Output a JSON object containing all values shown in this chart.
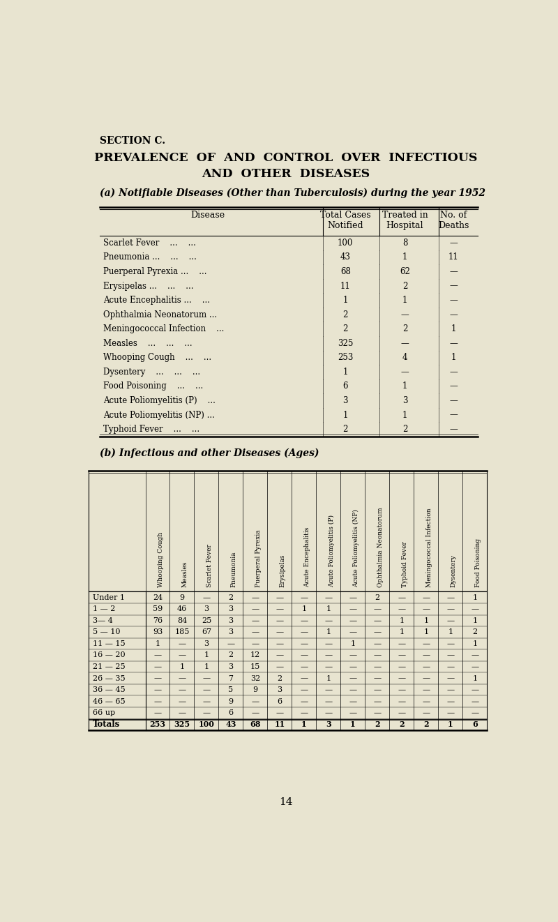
{
  "bg_color": "#e8e4d0",
  "section_label": "SECTION C.",
  "title_line1": "PREVALENCE  OF  AND  CONTROL  OVER  INFECTIOUS",
  "title_line2": "AND  OTHER  DISEASES",
  "subtitle_a": "(a) Notifiable Diseases (Other than Tuberculosis) during the year 1952",
  "table_a_rows": [
    [
      "Scarlet Fever    ...    ...",
      "100",
      "8",
      "—"
    ],
    [
      "Pneumonia ...    ...    ...",
      "43",
      "1",
      "11"
    ],
    [
      "Puerperal Pyrexia ...    ...",
      "68",
      "62",
      "—"
    ],
    [
      "Erysipelas ...    ...    ...",
      "11",
      "2",
      "—"
    ],
    [
      "Acute Encephalitis ...    ...",
      "1",
      "1",
      "—"
    ],
    [
      "Ophthalmia Neonatorum ...",
      "2",
      "—",
      "—"
    ],
    [
      "Meningococcal Infection    ...",
      "2",
      "2",
      "1"
    ],
    [
      "Measles    ...    ...    ...",
      "325",
      "—",
      "—"
    ],
    [
      "Whooping Cough    ...    ...",
      "253",
      "4",
      "1"
    ],
    [
      "Dysentery    ...    ...    ...",
      "1",
      "—",
      "—"
    ],
    [
      "Food Poisoning    ...    ...",
      "6",
      "1",
      "—"
    ],
    [
      "Acute Poliomyelitis (P)    ...",
      "3",
      "3",
      "—"
    ],
    [
      "Acute Poliomyelitis (NP) ...",
      "1",
      "1",
      "—"
    ],
    [
      "Typhoid Fever    ...    ...",
      "2",
      "2",
      "—"
    ]
  ],
  "subtitle_b": "(b) Infectious and other Diseases (Ages)",
  "table_b_col_headers": [
    "Whooping Cough",
    "Measles",
    "Scarlet Fever",
    "Pneumonia",
    "Puerperal Pyrexia",
    "Erysipelas",
    "Acute Encephalitis",
    "Acute Poliomyelitis (P)",
    "Acute Poliomyelitis (NP)",
    "Ophthalmia Neonatorum",
    "Typhoid Fever",
    "Meningococcal Infection",
    "Dysentery",
    "Food Poisoning"
  ],
  "table_b_row_headers": [
    "Under 1",
    "1 — 2",
    "3— 4",
    "5 — 10",
    "11 — 15",
    "16 — 20",
    "21 — 25",
    "26 — 35",
    "36 — 45",
    "46 — 65",
    "66 up",
    "Totals"
  ],
  "table_b_data": [
    [
      "24",
      "9",
      "—",
      "2",
      "—",
      "—",
      "—",
      "—",
      "—",
      "2",
      "—",
      "—",
      "—",
      "1"
    ],
    [
      "59",
      "46",
      "3",
      "3",
      "—",
      "—",
      "1",
      "1",
      "—",
      "—",
      "—",
      "—",
      "—",
      "—"
    ],
    [
      "76",
      "84",
      "25",
      "3",
      "—",
      "—",
      "—",
      "—",
      "—",
      "—",
      "1",
      "1",
      "—",
      "1"
    ],
    [
      "93",
      "185",
      "67",
      "3",
      "—",
      "—",
      "—",
      "1",
      "—",
      "—",
      "1",
      "1",
      "1",
      "2"
    ],
    [
      "1",
      "—",
      "3",
      "—",
      "—",
      "—",
      "—",
      "—",
      "1",
      "—",
      "—",
      "—",
      "—",
      "1"
    ],
    [
      "—",
      "—",
      "1",
      "2",
      "12",
      "—",
      "—",
      "—",
      "—",
      "—",
      "—",
      "—",
      "—",
      "—"
    ],
    [
      "—",
      "1",
      "1",
      "3",
      "15",
      "—",
      "—",
      "—",
      "—",
      "—",
      "—",
      "—",
      "—",
      "—"
    ],
    [
      "—",
      "—",
      "—",
      "7",
      "32",
      "2",
      "—",
      "1",
      "—",
      "—",
      "—",
      "—",
      "—",
      "1"
    ],
    [
      "—",
      "—",
      "—",
      "5",
      "9",
      "3",
      "—",
      "—",
      "—",
      "—",
      "—",
      "—",
      "—",
      "—"
    ],
    [
      "—",
      "—",
      "—",
      "9",
      "—",
      "6",
      "—",
      "—",
      "—",
      "—",
      "—",
      "—",
      "—",
      "—"
    ],
    [
      "—",
      "—",
      "—",
      "6",
      "—",
      "—",
      "—",
      "—",
      "—",
      "—",
      "—",
      "—",
      "—",
      "—"
    ],
    [
      "253",
      "325",
      "100",
      "43",
      "68",
      "11",
      "1",
      "3",
      "1",
      "2",
      "2",
      "2",
      "1",
      "6"
    ]
  ],
  "page_number": "14"
}
